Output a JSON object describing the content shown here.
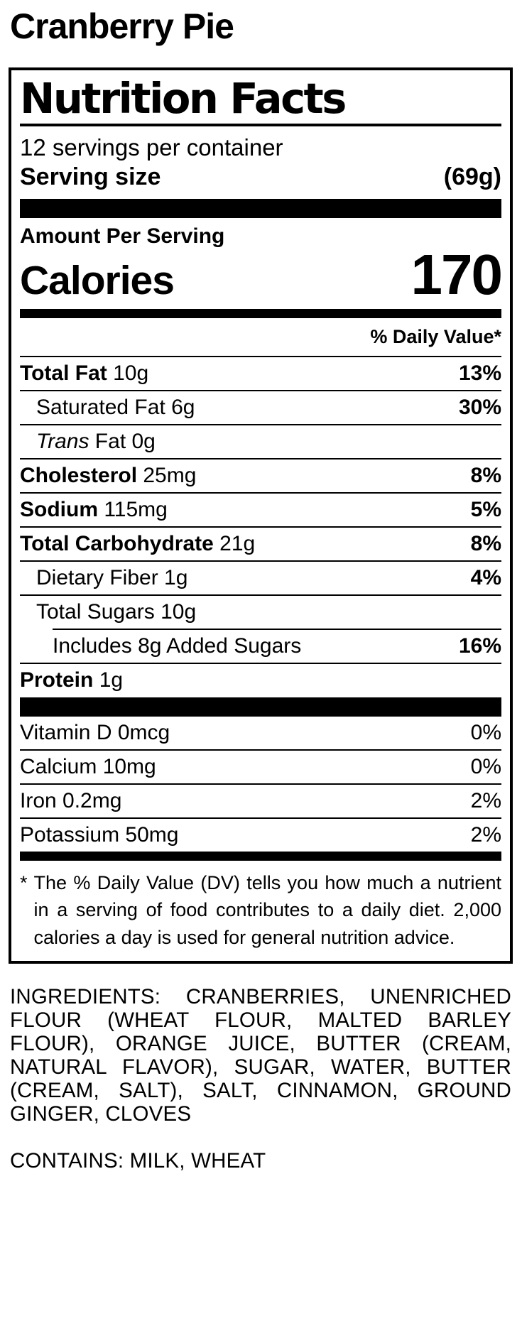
{
  "product": {
    "name": "Cranberry Pie"
  },
  "label": {
    "title": "Nutrition Facts",
    "servings_per_container": "12 servings per container",
    "serving_size_label": "Serving size",
    "serving_size_value": "(69g)",
    "amount_per_serving": "Amount Per Serving",
    "calories_label": "Calories",
    "calories_value": "170",
    "daily_value_header": "% Daily Value*",
    "rows": [
      {
        "bold": "Total Fat",
        "rest": " 10g",
        "dv": "13%"
      },
      {
        "rest": "Saturated Fat 6g",
        "dv": "30%"
      },
      {
        "italic": "Trans",
        "rest": " Fat 0g",
        "dv": ""
      },
      {
        "bold": "Cholesterol",
        "rest": " 25mg",
        "dv": "8%"
      },
      {
        "bold": "Sodium",
        "rest": " 115mg",
        "dv": "5%"
      },
      {
        "bold": "Total Carbohydrate",
        "rest": " 21g",
        "dv": "8%"
      },
      {
        "rest": "Dietary Fiber 1g",
        "dv": "4%"
      },
      {
        "rest": "Total Sugars 10g",
        "dv": ""
      },
      {
        "rest": "Includes 8g Added Sugars",
        "dv": "16%"
      },
      {
        "bold": "Protein",
        "rest": " 1g",
        "dv": ""
      }
    ],
    "vitamins": [
      {
        "rest": "Vitamin D 0mcg",
        "dv": "0%"
      },
      {
        "rest": "Calcium 10mg",
        "dv": "0%"
      },
      {
        "rest": "Iron 0.2mg",
        "dv": "2%"
      },
      {
        "rest": "Potassium 50mg",
        "dv": "2%"
      }
    ],
    "footnote_star": "*",
    "footnote": "The % Daily Value (DV) tells you how much a nutrient in a serving of food contributes to a daily diet. 2,000 calories a day is used for general nutrition advice."
  },
  "ingredients": "INGREDIENTS: CRANBERRIES, UNENRICHED FLOUR (WHEAT FLOUR, MALTED BARLEY FLOUR), ORANGE JUICE, BUTTER (CREAM, NATURAL FLAVOR), SUGAR, WATER, BUTTER (CREAM, SALT), SALT, CINNAMON, GROUND GINGER, CLOVES",
  "contains": "CONTAINS: MILK, WHEAT",
  "colors": {
    "foreground": "#000000",
    "background": "#ffffff"
  }
}
